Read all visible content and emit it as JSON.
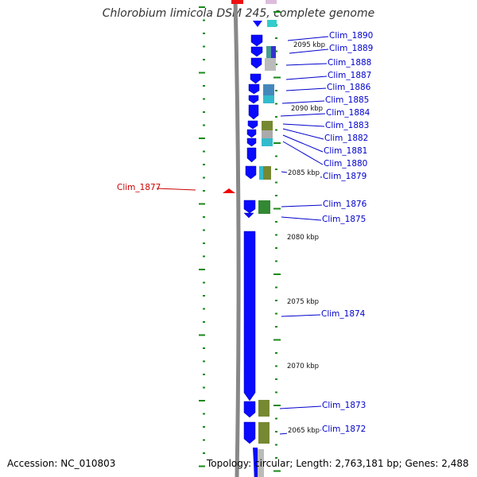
{
  "title": "Chlorobium limicola DSM 245, complete genome",
  "footer": {
    "accession": "Accession: NC_010803",
    "summary": "Topology: circular; Length: 2,763,181 bp; Genes: 2,488"
  },
  "colors": {
    "backbone": "#888888",
    "gene_fill": "#0a0aff",
    "gene_label_pos": "#0000cc",
    "gene_label_neg": "#cc0000",
    "gc_tick": "#1a8a1a",
    "highlight_top": "#ee1111"
  },
  "scale_labels": [
    {
      "kbp": 2095,
      "label": "2095 kbp"
    },
    {
      "kbp": 2090,
      "label": "2090 kbp"
    },
    {
      "kbp": 2085,
      "label": "2085 kbp"
    },
    {
      "kbp": 2080,
      "label": "2080 kbp"
    },
    {
      "kbp": 2075,
      "label": "2075 kbp"
    },
    {
      "kbp": 2070,
      "label": "2070 kbp"
    },
    {
      "kbp": 2065,
      "label": "2065 kbp"
    }
  ],
  "genes": [
    {
      "name": "Clim_1890",
      "strand": "+"
    },
    {
      "name": "Clim_1889",
      "strand": "+"
    },
    {
      "name": "Clim_1888",
      "strand": "+"
    },
    {
      "name": "Clim_1887",
      "strand": "+"
    },
    {
      "name": "Clim_1886",
      "strand": "+"
    },
    {
      "name": "Clim_1885",
      "strand": "+"
    },
    {
      "name": "Clim_1884",
      "strand": "+"
    },
    {
      "name": "Clim_1883",
      "strand": "+"
    },
    {
      "name": "Clim_1882",
      "strand": "+"
    },
    {
      "name": "Clim_1881",
      "strand": "+"
    },
    {
      "name": "Clim_1880",
      "strand": "+"
    },
    {
      "name": "Clim_1879",
      "strand": "+"
    },
    {
      "name": "Clim_1877",
      "strand": "-"
    },
    {
      "name": "Clim_1876",
      "strand": "+"
    },
    {
      "name": "Clim_1875",
      "strand": "+"
    },
    {
      "name": "Clim_1874",
      "strand": "+"
    },
    {
      "name": "Clim_1873",
      "strand": "+"
    },
    {
      "name": "Clim_1872",
      "strand": "+"
    }
  ]
}
